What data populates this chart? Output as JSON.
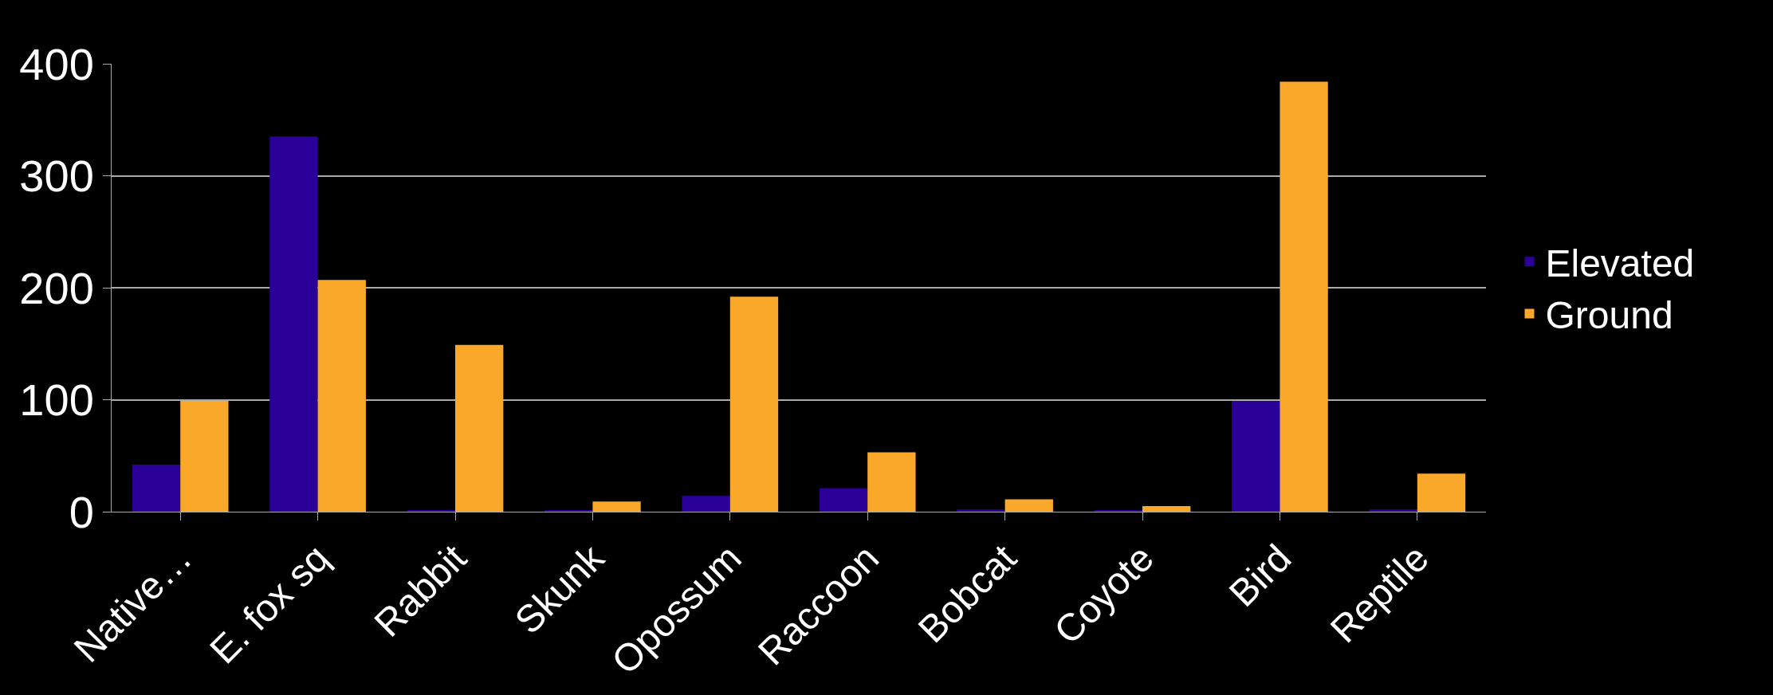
{
  "chart_data": {
    "type": "bar",
    "categories": [
      "Native…",
      "E. fox sq",
      "Rabbit",
      "Skunk",
      "Opossum",
      "Raccoon",
      "Bobcat",
      "Coyote",
      "Bird",
      "Reptile"
    ],
    "series": [
      {
        "name": "Elevated",
        "color": "#2b0099",
        "values": [
          42,
          335,
          1,
          1,
          14,
          21,
          2,
          1,
          99,
          2
        ]
      },
      {
        "name": "Ground",
        "color": "#f9a82a",
        "values": [
          99,
          207,
          149,
          9,
          192,
          53,
          11,
          5,
          384,
          34
        ]
      }
    ],
    "ylim": [
      0,
      400
    ],
    "yticks": [
      0,
      100,
      200,
      300,
      400
    ],
    "grid": "y",
    "legend": "right"
  }
}
